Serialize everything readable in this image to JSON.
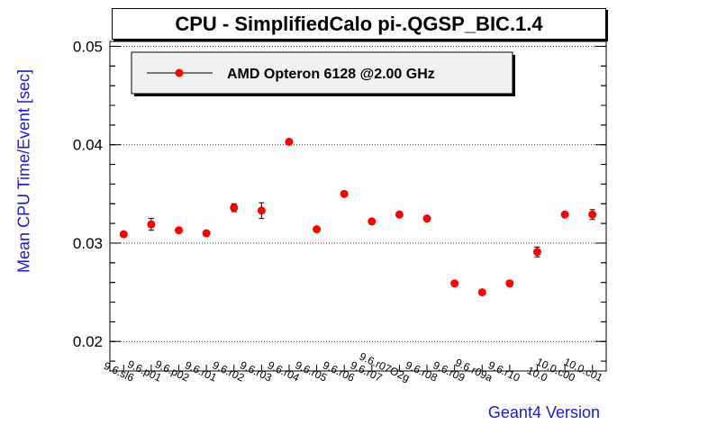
{
  "chart_data": {
    "type": "scatter",
    "title": "CPU - SimplifiedCalo pi-.QGSP_BIC.1.4",
    "xlabel": "Geant4 Version",
    "ylabel": "Mean CPU Time/Event [sec]",
    "ylim": [
      0.017,
      0.0505
    ],
    "yticks": [
      "0.02",
      "0.03",
      "0.04",
      "0.05"
    ],
    "grid": true,
    "legend_position": "top-left",
    "categories": [
      "9.6.sl6",
      "9.6.p01",
      "9.6.p02",
      "9.6.r01",
      "9.6.r02",
      "9.6.r03",
      "9.6.r04",
      "9.6.r05",
      "9.6.r06",
      "9.6.r07",
      "9.6.r07O2g",
      "9.6.r08",
      "9.6.r09",
      "9.6.r09a",
      "9.6.r10",
      "10.0",
      "10.0.c00",
      "10.0.c01"
    ],
    "series": [
      {
        "name": "AMD Opteron 6128 @2.00 GHz",
        "color": "#ff0000",
        "values": [
          0.0309,
          0.0319,
          0.0313,
          0.031,
          0.0336,
          0.0333,
          0.0403,
          0.0314,
          0.035,
          0.0322,
          0.0329,
          0.0325,
          0.0259,
          0.025,
          0.0259,
          0.0291,
          0.0329,
          0.0329
        ],
        "errors": [
          0.0002,
          0.0006,
          0.0002,
          0.0002,
          0.0004,
          0.0008,
          0.0002,
          0.0002,
          0.0002,
          0.0002,
          0.0002,
          0.0002,
          0.0002,
          0.0002,
          0.0003,
          0.0005,
          0.0002,
          0.0005
        ]
      }
    ]
  }
}
